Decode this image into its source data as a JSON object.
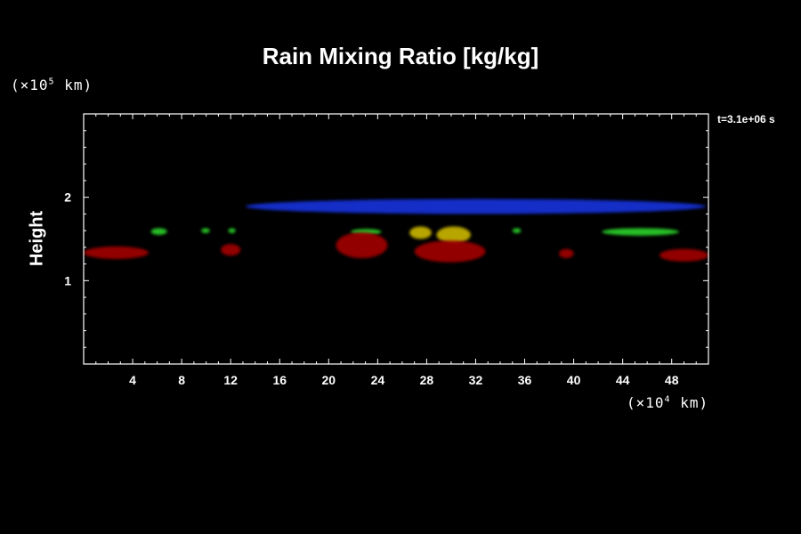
{
  "chart_data": {
    "type": "heatmap",
    "title": "Rain Mixing Ratio [kg/kg]",
    "ylabel": "Height",
    "x_unit": {
      "prefix": "(×10",
      "exp": "4",
      "suffix": " km)"
    },
    "y_unit": {
      "prefix": "(×10",
      "exp": "5",
      "suffix": " km)"
    },
    "time_label": "t=3.1e+06 s",
    "xlim": [
      0,
      51
    ],
    "ylim": [
      0,
      3
    ],
    "x_ticks": [
      4,
      8,
      12,
      16,
      20,
      24,
      28,
      32,
      36,
      40,
      44,
      48
    ],
    "y_ticks": [
      1,
      2
    ],
    "colors": {
      "blue": "#1430d8",
      "green": "#2ad02a",
      "yellow": "#c8b400",
      "red": "#a00000",
      "background": "#000000"
    },
    "regions": [
      {
        "level": "blue",
        "x": [
          13.2,
          50.8
        ],
        "y": [
          1.8,
          1.98
        ]
      },
      {
        "level": "green",
        "x": [
          5.5,
          6.8
        ],
        "y": [
          1.55,
          1.63
        ]
      },
      {
        "level": "green",
        "x": [
          9.6,
          10.3
        ],
        "y": [
          1.57,
          1.63
        ]
      },
      {
        "level": "green",
        "x": [
          11.8,
          12.4
        ],
        "y": [
          1.57,
          1.63
        ]
      },
      {
        "level": "green",
        "x": [
          21.8,
          24.3
        ],
        "y": [
          1.55,
          1.62
        ]
      },
      {
        "level": "green",
        "x": [
          35.0,
          35.7
        ],
        "y": [
          1.57,
          1.63
        ]
      },
      {
        "level": "green",
        "x": [
          42.3,
          48.6
        ],
        "y": [
          1.54,
          1.63
        ]
      },
      {
        "level": "yellow",
        "x": [
          26.6,
          28.4
        ],
        "y": [
          1.5,
          1.65
        ]
      },
      {
        "level": "yellow",
        "x": [
          28.8,
          31.6
        ],
        "y": [
          1.45,
          1.65
        ]
      },
      {
        "level": "red",
        "x": [
          0,
          5.3
        ],
        "y": [
          1.26,
          1.41
        ]
      },
      {
        "level": "red",
        "x": [
          11.2,
          12.8
        ],
        "y": [
          1.3,
          1.44
        ]
      },
      {
        "level": "red",
        "x": [
          20.6,
          24.8
        ],
        "y": [
          1.27,
          1.58
        ]
      },
      {
        "level": "red",
        "x": [
          27.0,
          32.8
        ],
        "y": [
          1.22,
          1.48
        ]
      },
      {
        "level": "red",
        "x": [
          38.8,
          40.0
        ],
        "y": [
          1.27,
          1.38
        ]
      },
      {
        "level": "red",
        "x": [
          47.0,
          51.0
        ],
        "y": [
          1.23,
          1.38
        ]
      }
    ]
  }
}
